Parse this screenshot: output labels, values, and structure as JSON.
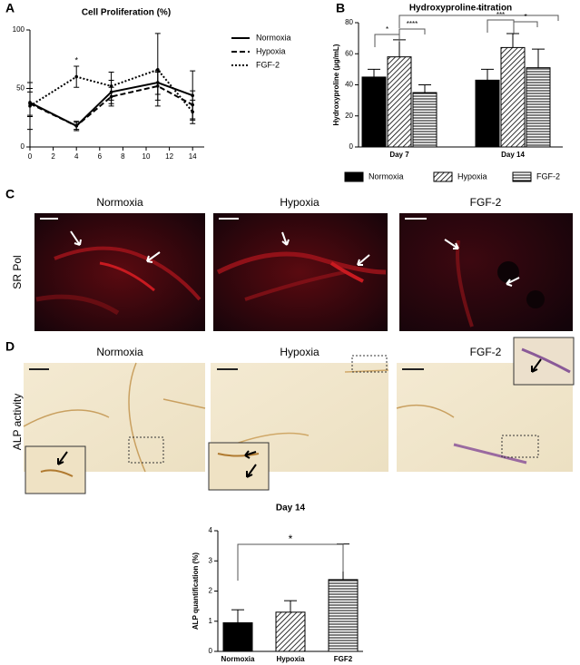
{
  "chart_data": [
    {
      "type": "line",
      "title": "Cell Proliferation  (%)",
      "x": [
        0,
        4,
        7,
        11,
        14
      ],
      "xlim": [
        0,
        15
      ],
      "xticks": [
        0,
        2,
        4,
        6,
        8,
        10,
        12,
        14
      ],
      "ylim": [
        0,
        100
      ],
      "yticks": [
        0,
        50,
        100
      ],
      "series": [
        {
          "name": "Normoxia",
          "color": "#000000",
          "dash": "solid",
          "values": [
            38,
            18,
            47,
            55,
            44
          ],
          "errors": [
            12,
            4,
            10,
            10,
            21
          ]
        },
        {
          "name": "Hypoxia",
          "color": "#000000",
          "dash": "dashed",
          "values": [
            37,
            18,
            43,
            52,
            36
          ],
          "errors": [
            10,
            3,
            8,
            12,
            12
          ]
        },
        {
          "name": "FGF-2",
          "color": "#000000",
          "dash": "dotted",
          "values": [
            35,
            60,
            52,
            66,
            30
          ],
          "errors": [
            20,
            9,
            12,
            31,
            10
          ]
        }
      ],
      "annotations": [
        "*"
      ]
    },
    {
      "type": "bar",
      "title": "Hydroxyproline titration",
      "y_label": "Hydroxyproline (µg/mL)",
      "categories": [
        "Day 7",
        "Day 14"
      ],
      "ylim": [
        0,
        80
      ],
      "yticks": [
        0,
        20,
        40,
        60,
        80
      ],
      "series": [
        {
          "name": "Normoxia",
          "color": "#000000",
          "pattern": "solid",
          "values": [
            45,
            43
          ],
          "errors": [
            5,
            7
          ]
        },
        {
          "name": "Hypoxia",
          "color": "#000000",
          "pattern": "diagonal",
          "values": [
            58,
            64
          ],
          "errors": [
            11,
            9
          ]
        },
        {
          "name": "FGF-2",
          "color": "#000000",
          "pattern": "horizontal",
          "values": [
            35,
            51
          ],
          "errors": [
            5,
            12
          ]
        }
      ],
      "annotations": [
        "*",
        "****",
        "**",
        "***",
        "*"
      ]
    },
    {
      "type": "bar",
      "title": "Day 14",
      "y_label": "ALP quantification (%)",
      "categories": [
        "Normoxia",
        "Hypoxia",
        "FGF2"
      ],
      "ylim": [
        0,
        4
      ],
      "yticks": [
        0,
        1,
        2,
        3,
        4
      ],
      "series": [
        {
          "name": null,
          "color": "#000000",
          "patterns": [
            "solid",
            "diagonal",
            "horizontal"
          ],
          "values": [
            0.95,
            1.3,
            2.38
          ],
          "errors": [
            0.43,
            0.38,
            1.18
          ]
        }
      ],
      "annotations": [
        "*"
      ]
    }
  ],
  "panels": {
    "letters": [
      "A",
      "B",
      "C",
      "D"
    ],
    "c": {
      "row_label": "SR Pol",
      "titles": [
        "Normoxia",
        "Hypoxia",
        "FGF-2"
      ]
    },
    "d": {
      "row_label": "ALP activity",
      "titles": [
        "Normoxia",
        "Hypoxia",
        "FGF-2"
      ]
    }
  }
}
